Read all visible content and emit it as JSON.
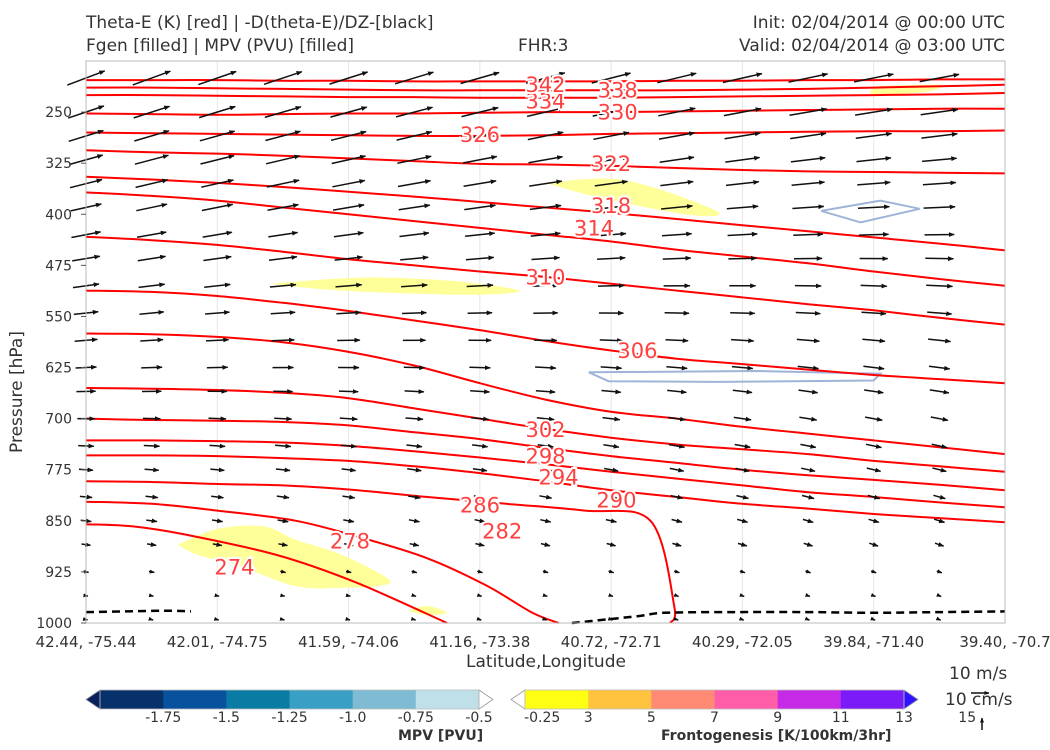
{
  "header": {
    "line1_left": "Theta-E (K) [red] | -D(theta-E)/DZ-[black]",
    "line2_left": "Fgen [filled] | MPV (PVU) [filled]",
    "center": "FHR:3",
    "init": "Init: 02/04/2014 @ 00:00 UTC",
    "valid": "Valid: 02/04/2014 @ 03:00 UTC"
  },
  "chart_data": {
    "type": "cross-section",
    "xlabel": "Latitude,Longitude",
    "ylabel": "Pressure [hPa]",
    "ylim": [
      1000,
      175
    ],
    "y_scale": "linear, inverted",
    "x_ticks": [
      "42.44, -75.44",
      "42.01, -74.75",
      "41.59, -74.06",
      "41.16, -73.38",
      "40.72, -72.71",
      "40.29, -72.05",
      "39.84, -71.40",
      "39.40, -70.7"
    ],
    "y_ticks": [
      250,
      325,
      400,
      475,
      550,
      625,
      700,
      775,
      850,
      925,
      1000
    ],
    "theta_e_contours": {
      "color": "#ff0000",
      "levels": [
        274,
        278,
        282,
        286,
        290,
        294,
        298,
        302,
        306,
        310,
        314,
        318,
        322,
        326,
        330,
        334,
        338,
        342
      ],
      "lines": [
        {
          "level": 274,
          "x": [
            0,
            0.35,
            0.75,
            1.45,
            2.05,
            2.75
          ],
          "p": [
            855,
            858,
            870,
            900,
            940,
            1000
          ]
        },
        {
          "level": 278,
          "x": [
            0,
            0.5,
            1,
            1.6,
            2.1,
            2.6,
            3.05,
            3.4,
            3.6
          ],
          "p": [
            822,
            825,
            835,
            850,
            875,
            905,
            945,
            985,
            1000
          ]
        },
        {
          "level": 282,
          "x": [
            0,
            0.5,
            1,
            1.5,
            2,
            2.6,
            3.2,
            3.8,
            4.3,
            4.48,
            4.45
          ],
          "p": [
            792,
            793,
            796,
            798,
            804,
            815,
            825,
            835,
            850,
            975,
            1000
          ]
        },
        {
          "level": 286,
          "x": [
            0,
            0.5,
            1,
            1.5,
            2,
            2.5,
            3,
            3.5,
            4,
            4.5,
            5,
            5.5,
            6,
            6.5,
            7
          ],
          "p": [
            754,
            754,
            755,
            758,
            762,
            770,
            780,
            792,
            805,
            815,
            825,
            832,
            840,
            846,
            852
          ]
        },
        {
          "level": 290,
          "x": [
            0,
            0.5,
            1,
            1.5,
            2,
            2.5,
            3,
            3.5,
            4,
            4.5,
            5,
            5.5,
            6,
            6.5,
            7
          ],
          "p": [
            732,
            732,
            733,
            735,
            740,
            748,
            757,
            767,
            778,
            788,
            798,
            808,
            815,
            823,
            830
          ]
        },
        {
          "level": 294,
          "x": [
            0,
            0.5,
            1,
            1.5,
            2,
            2.5,
            3,
            3.5,
            4,
            4.5,
            5,
            5.5,
            6,
            6.5,
            7
          ],
          "p": [
            700,
            702,
            703,
            705,
            710,
            720,
            730,
            743,
            755,
            765,
            775,
            783,
            790,
            797,
            805
          ]
        },
        {
          "level": 298,
          "x": [
            0,
            0.5,
            1,
            1.5,
            2,
            2.5,
            3,
            3.5,
            4,
            4.5,
            5,
            5.5,
            6,
            6.5,
            7
          ],
          "p": [
            655,
            656,
            658,
            662,
            670,
            685,
            700,
            715,
            728,
            738,
            745,
            752,
            762,
            770,
            778
          ]
        },
        {
          "level": 302,
          "x": [
            0,
            0.5,
            1,
            1.5,
            2,
            2.5,
            3,
            3.5,
            4,
            4.5,
            5,
            5.5,
            6,
            6.5,
            7
          ],
          "p": [
            575,
            576,
            580,
            588,
            602,
            622,
            648,
            672,
            690,
            700,
            712,
            722,
            732,
            742,
            752
          ]
        },
        {
          "level": 306,
          "x": [
            0,
            0.5,
            1,
            1.5,
            2,
            2.5,
            3,
            3.5,
            4,
            4.5,
            5,
            5.5,
            6,
            6.5,
            7
          ],
          "p": [
            512,
            514,
            520,
            530,
            542,
            556,
            570,
            586,
            600,
            612,
            620,
            628,
            636,
            642,
            648
          ]
        },
        {
          "level": 310,
          "x": [
            0,
            0.5,
            1,
            1.5,
            2,
            2.5,
            3,
            3.5,
            4,
            4.5,
            5,
            5.5,
            6,
            6.5,
            7
          ],
          "p": [
            433,
            438,
            445,
            455,
            466,
            475,
            484,
            492,
            502,
            512,
            522,
            532,
            541,
            552,
            562
          ]
        },
        {
          "level": 314,
          "x": [
            0,
            0.5,
            1,
            1.5,
            2,
            2.5,
            3,
            3.5,
            4,
            4.5,
            5,
            5.5,
            6,
            6.5,
            7
          ],
          "p": [
            368,
            373,
            380,
            390,
            400,
            410,
            420,
            430,
            440,
            452,
            462,
            472,
            484,
            495,
            505
          ]
        },
        {
          "level": 318,
          "x": [
            0,
            0.5,
            1,
            1.5,
            2,
            2.5,
            3,
            3.5,
            4,
            4.5,
            5,
            5.5,
            6,
            6.5,
            7
          ],
          "p": [
            345,
            349,
            354,
            360,
            367,
            374,
            382,
            390,
            398,
            407,
            416,
            425,
            434,
            443,
            453
          ]
        },
        {
          "level": 322,
          "x": [
            0,
            0.5,
            1,
            1.5,
            2,
            2.5,
            3,
            3.5,
            4,
            4.5,
            5,
            5.5,
            6,
            6.5,
            7
          ],
          "p": [
            306,
            309,
            311,
            314,
            318,
            322,
            326,
            327,
            329,
            332,
            335,
            337,
            338,
            339,
            340
          ]
        },
        {
          "level": 326,
          "x": [
            0,
            0.5,
            1,
            1.5,
            2,
            2.5,
            3,
            3.5,
            4,
            4.5,
            5,
            5.5,
            6,
            6.5,
            7
          ],
          "p": [
            280,
            281,
            282,
            283,
            284,
            285,
            285,
            284,
            282,
            281,
            280,
            279,
            278,
            278,
            277
          ]
        },
        {
          "level": 330,
          "x": [
            0,
            0.5,
            1,
            1.5,
            2,
            2.5,
            3,
            3.5,
            4,
            4.5,
            5,
            5.5,
            6,
            6.5,
            7
          ],
          "p": [
            252,
            253,
            254,
            253,
            252,
            252,
            251,
            250,
            250,
            249,
            248,
            247,
            246,
            245,
            245
          ]
        },
        {
          "level": 334,
          "x": [
            0,
            0.5,
            1,
            1.5,
            2,
            2.5,
            3,
            3.5,
            4,
            4.5,
            5,
            5.5,
            6,
            6.5,
            7
          ],
          "p": [
            225,
            225,
            226,
            227,
            228,
            228,
            229,
            229,
            229,
            228,
            227,
            226,
            225,
            224,
            222
          ]
        },
        {
          "level": 338,
          "x": [
            0,
            0.5,
            1,
            1.5,
            2,
            2.5,
            3,
            3.5,
            4,
            4.5,
            5,
            5.5,
            6,
            6.5,
            7
          ],
          "p": [
            214,
            214,
            215,
            216,
            217,
            218,
            218,
            218,
            218,
            218,
            217,
            216,
            214,
            212,
            210
          ]
        },
        {
          "level": 342,
          "x": [
            0,
            0.5,
            1,
            1.5,
            2,
            2.5,
            3,
            3.5,
            4,
            4.5,
            5,
            5.5,
            6,
            6.5,
            7
          ],
          "p": [
            203,
            203,
            203,
            204,
            204,
            205,
            205,
            205,
            205,
            204,
            204,
            203,
            203,
            202,
            202
          ]
        }
      ],
      "labels": [
        {
          "text": "274",
          "x": 1.13,
          "p": 920
        },
        {
          "text": "278",
          "x": 2.01,
          "p": 882
        },
        {
          "text": "282",
          "x": 3.17,
          "p": 867
        },
        {
          "text": "286",
          "x": 3.0,
          "p": 829
        },
        {
          "text": "290",
          "x": 4.04,
          "p": 822
        },
        {
          "text": "294",
          "x": 3.6,
          "p": 788
        },
        {
          "text": "298",
          "x": 3.5,
          "p": 757
        },
        {
          "text": "302",
          "x": 3.5,
          "p": 718
        },
        {
          "text": "306",
          "x": 4.2,
          "p": 602
        },
        {
          "text": "310",
          "x": 3.5,
          "p": 494
        },
        {
          "text": "314",
          "x": 3.87,
          "p": 422
        },
        {
          "text": "318",
          "x": 4.0,
          "p": 389
        },
        {
          "text": "322",
          "x": 4.0,
          "p": 328
        },
        {
          "text": "326",
          "x": 3.0,
          "p": 285
        },
        {
          "text": "330",
          "x": 4.05,
          "p": 252
        },
        {
          "text": "334",
          "x": 3.5,
          "p": 236
        },
        {
          "text": "338",
          "x": 4.05,
          "p": 220
        },
        {
          "text": "342",
          "x": 3.5,
          "p": 212
        }
      ]
    },
    "dthetae_dz_zero_contour": {
      "style": "dashed black",
      "segments": [
        {
          "x": [
            0,
            0.3,
            0.6,
            0.8
          ],
          "p": [
            984,
            983,
            982,
            983
          ]
        },
        {
          "x": [
            3.7,
            4.2,
            4.4,
            4.9,
            5.5,
            6.0,
            6.5,
            7.0
          ],
          "p": [
            1000,
            990,
            985,
            984,
            984,
            985,
            984,
            983
          ]
        }
      ]
    },
    "fgen_filled": {
      "color": "#ffff99",
      "areas": [
        {
          "x": [
            0.7,
            1.0,
            1.35,
            1.6,
            1.95,
            2.3,
            2.25,
            2.0,
            1.6,
            1.15,
            0.85
          ],
          "p": [
            885,
            862,
            858,
            878,
            900,
            935,
            945,
            948,
            946,
            915,
            900
          ]
        },
        {
          "x": [
            1.4,
            2.1,
            2.8,
            3.3,
            3.0,
            2.4,
            1.8
          ],
          "p": [
            502,
            493,
            498,
            512,
            518,
            516,
            510
          ]
        },
        {
          "x": [
            3.5,
            4.1,
            4.8,
            4.6,
            3.9
          ],
          "p": [
            354,
            350,
            395,
            401,
            375
          ]
        },
        {
          "x": [
            2.45,
            2.6,
            2.75,
            2.6
          ],
          "p": [
            982,
            975,
            985,
            988
          ]
        },
        {
          "x": [
            6.0,
            6.5,
            6.4,
            6.0
          ],
          "p": [
            212,
            210,
            220,
            224
          ]
        }
      ]
    },
    "mpv_filled": {
      "outline_color": "#9fb4d8",
      "areas": [
        {
          "x": [
            5.6,
            6.05,
            6.35,
            5.9
          ],
          "p": [
            395,
            380,
            392,
            412
          ]
        },
        {
          "x": [
            3.83,
            5.1,
            6.05,
            6.0,
            4.8,
            3.98
          ],
          "p": [
            632,
            630,
            634,
            644,
            646,
            645
          ]
        }
      ]
    },
    "wind_vectors": {
      "description": "black arrows in x-p plane",
      "x": [
        0,
        0.5,
        1,
        1.5,
        2,
        2.5,
        3,
        3.5,
        4,
        4.5,
        5,
        5.5,
        6,
        6.5,
        7
      ],
      "p": [
        200,
        250,
        285,
        320,
        355,
        390,
        430,
        465,
        505,
        545,
        585,
        625,
        660,
        700,
        740,
        775,
        815,
        850,
        885,
        925,
        960,
        995
      ],
      "reference_speed_u": "10 m/s",
      "reference_speed_w": "10 cm/s"
    },
    "colorbars": [
      {
        "label": "MPV [PVU]",
        "ticks": [
          "-1.75",
          "-1.5",
          "-1.25",
          "-1.0",
          "-0.75",
          "-0.5",
          "-0.25"
        ],
        "colors": [
          "#08205e",
          "#08306b",
          "#08519c",
          "#0a7ba3",
          "#3a9fc4",
          "#7fbcd3",
          "#bfe0e8",
          "#ffffff"
        ]
      },
      {
        "label": "Frontogenesis [K/100km/3hr]",
        "ticks": [
          "3",
          "5",
          "7",
          "9",
          "11",
          "13",
          "15"
        ],
        "colors": [
          "#ffffff",
          "#ffff14",
          "#ffc33f",
          "#ff8a73",
          "#ff5da8",
          "#c52be6",
          "#7b1bf7",
          "#2f12ff"
        ]
      }
    ]
  }
}
